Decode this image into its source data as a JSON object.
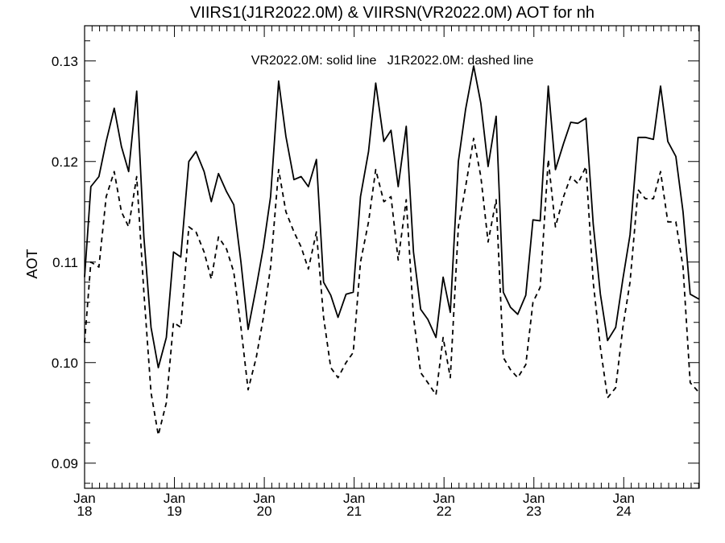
{
  "chart_data": {
    "type": "line",
    "title": "VIIRS1(J1R2022.0M) & VIIRSN(VR2022.0M)  AOT for nh",
    "ylabel": "AOT",
    "xlabel": "",
    "ylim": [
      0.0875,
      0.1335
    ],
    "xlim": [
      2018.0,
      2024.84
    ],
    "annotation": "VR2022.0M: solid line   J1R2022.0M: dashed line",
    "x_ticks": [
      {
        "value": 2018,
        "month": "Jan",
        "year": "18"
      },
      {
        "value": 2019,
        "month": "Jan",
        "year": "19"
      },
      {
        "value": 2020,
        "month": "Jan",
        "year": "20"
      },
      {
        "value": 2021,
        "month": "Jan",
        "year": "21"
      },
      {
        "value": 2022,
        "month": "Jan",
        "year": "22"
      },
      {
        "value": 2023,
        "month": "Jan",
        "year": "23"
      },
      {
        "value": 2024,
        "month": "Jan",
        "year": "24"
      }
    ],
    "y_ticks": [
      {
        "value": 0.09,
        "label": "0.09"
      },
      {
        "value": 0.1,
        "label": "0.10"
      },
      {
        "value": 0.11,
        "label": "0.11"
      },
      {
        "value": 0.12,
        "label": "0.12"
      },
      {
        "value": 0.13,
        "label": "0.13"
      }
    ],
    "grid": false,
    "legend": "none",
    "series": [
      {
        "name": "VR2022.0M",
        "style": "solid",
        "color": "#000000",
        "x": [
          2018.0,
          2018.07,
          2018.16,
          2018.24,
          2018.33,
          2018.41,
          2018.49,
          2018.58,
          2018.66,
          2018.74,
          2018.82,
          2018.91,
          2018.99,
          2019.07,
          2019.16,
          2019.24,
          2019.33,
          2019.41,
          2019.49,
          2019.58,
          2019.66,
          2019.74,
          2019.82,
          2019.91,
          2019.99,
          2020.07,
          2020.16,
          2020.24,
          2020.33,
          2020.41,
          2020.49,
          2020.58,
          2020.66,
          2020.74,
          2020.82,
          2020.91,
          2020.99,
          2021.07,
          2021.16,
          2021.24,
          2021.33,
          2021.41,
          2021.49,
          2021.58,
          2021.66,
          2021.74,
          2021.82,
          2021.91,
          2021.99,
          2022.07,
          2022.16,
          2022.24,
          2022.33,
          2022.41,
          2022.49,
          2022.58,
          2022.66,
          2022.74,
          2022.82,
          2022.91,
          2022.99,
          2023.07,
          2023.16,
          2023.24,
          2023.33,
          2023.41,
          2023.49,
          2023.58,
          2023.66,
          2023.74,
          2023.82,
          2023.91,
          2023.99,
          2024.07,
          2024.16,
          2024.24,
          2024.33,
          2024.41,
          2024.49,
          2024.58,
          2024.66,
          2024.74,
          2024.84
        ],
        "y": [
          0.1085,
          0.1175,
          0.1185,
          0.122,
          0.1253,
          0.1215,
          0.119,
          0.127,
          0.1125,
          0.1035,
          0.0995,
          0.1025,
          0.111,
          0.1105,
          0.12,
          0.121,
          0.119,
          0.116,
          0.1188,
          0.117,
          0.1157,
          0.11,
          0.1033,
          0.1075,
          0.1115,
          0.1165,
          0.128,
          0.1225,
          0.1182,
          0.1185,
          0.1175,
          0.1202,
          0.108,
          0.1067,
          0.1045,
          0.1068,
          0.107,
          0.1165,
          0.121,
          0.1278,
          0.122,
          0.1231,
          0.1175,
          0.1235,
          0.111,
          0.1053,
          0.1043,
          0.1025,
          0.1085,
          0.105,
          0.12,
          0.1252,
          0.1295,
          0.1258,
          0.1195,
          0.1245,
          0.107,
          0.1055,
          0.1048,
          0.1067,
          0.1142,
          0.1141,
          0.1275,
          0.1192,
          0.1218,
          0.1239,
          0.1238,
          0.1243,
          0.1138,
          0.1068,
          0.1022,
          0.1035,
          0.1083,
          0.1127,
          0.1224,
          0.1224,
          0.1222,
          0.1275,
          0.122,
          0.1205,
          0.115,
          0.1068,
          0.1063
        ]
      },
      {
        "name": "J1R2022.0M",
        "style": "dashed",
        "color": "#000000",
        "x": [
          2018.0,
          2018.07,
          2018.16,
          2018.24,
          2018.33,
          2018.41,
          2018.49,
          2018.58,
          2018.66,
          2018.74,
          2018.82,
          2018.91,
          2018.99,
          2019.07,
          2019.16,
          2019.24,
          2019.33,
          2019.41,
          2019.49,
          2019.58,
          2019.66,
          2019.74,
          2019.82,
          2019.91,
          2019.99,
          2020.07,
          2020.16,
          2020.24,
          2020.33,
          2020.41,
          2020.49,
          2020.58,
          2020.66,
          2020.74,
          2020.82,
          2020.91,
          2020.99,
          2021.07,
          2021.16,
          2021.24,
          2021.33,
          2021.41,
          2021.49,
          2021.58,
          2021.66,
          2021.74,
          2021.82,
          2021.91,
          2021.99,
          2022.07,
          2022.16,
          2022.24,
          2022.33,
          2022.41,
          2022.49,
          2022.58,
          2022.66,
          2022.74,
          2022.82,
          2022.91,
          2022.99,
          2023.07,
          2023.16,
          2023.24,
          2023.33,
          2023.41,
          2023.49,
          2023.58,
          2023.66,
          2023.74,
          2023.82,
          2023.91,
          2023.99,
          2024.07,
          2024.16,
          2024.24,
          2024.33,
          2024.41,
          2024.49,
          2024.58,
          2024.66,
          2024.74,
          2024.84
        ],
        "y": [
          0.102,
          0.11,
          0.1095,
          0.1165,
          0.119,
          0.115,
          0.1135,
          0.1185,
          0.107,
          0.097,
          0.0928,
          0.096,
          0.104,
          0.1035,
          0.1135,
          0.113,
          0.111,
          0.1083,
          0.1125,
          0.1113,
          0.109,
          0.1035,
          0.0973,
          0.1005,
          0.1045,
          0.1095,
          0.1192,
          0.115,
          0.113,
          0.1115,
          0.1093,
          0.113,
          0.1045,
          0.0995,
          0.0985,
          0.1,
          0.101,
          0.11,
          0.114,
          0.1192,
          0.116,
          0.1165,
          0.1102,
          0.1162,
          0.1045,
          0.099,
          0.098,
          0.0968,
          0.1025,
          0.0985,
          0.1135,
          0.1175,
          0.1223,
          0.1185,
          0.112,
          0.1162,
          0.1005,
          0.0993,
          0.0985,
          0.0998,
          0.106,
          0.1075,
          0.1202,
          0.1135,
          0.1165,
          0.1185,
          0.1178,
          0.1195,
          0.108,
          0.1015,
          0.0965,
          0.0975,
          0.1035,
          0.108,
          0.1172,
          0.1163,
          0.1163,
          0.119,
          0.114,
          0.114,
          0.1095,
          0.098,
          0.097
        ]
      }
    ]
  }
}
